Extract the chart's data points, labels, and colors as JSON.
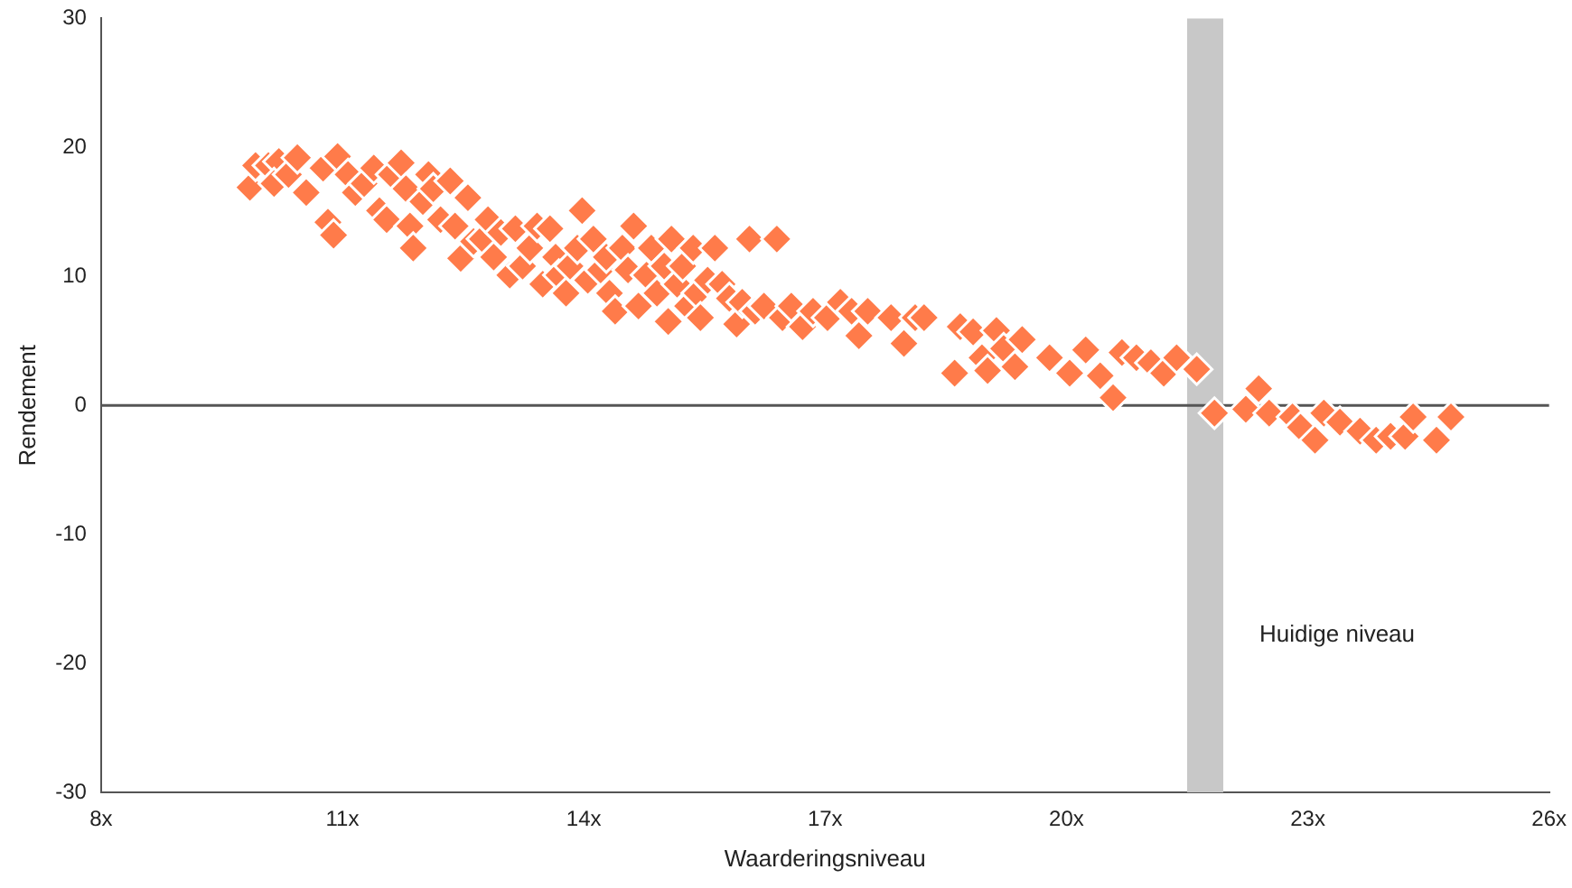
{
  "chart_data": {
    "type": "scatter",
    "xlabel": "Waarderingsniveau",
    "ylabel": "Rendement",
    "xlim": [
      8,
      26
    ],
    "ylim": [
      -30,
      30
    ],
    "xticks": [
      {
        "value": 8,
        "label": "8x"
      },
      {
        "value": 11,
        "label": "11x"
      },
      {
        "value": 14,
        "label": "14x"
      },
      {
        "value": 17,
        "label": "17x"
      },
      {
        "value": 20,
        "label": "20x"
      },
      {
        "value": 23,
        "label": "23x"
      },
      {
        "value": 26,
        "label": "26x"
      }
    ],
    "yticks": [
      -30,
      -20,
      -10,
      0,
      10,
      20,
      30
    ],
    "grid": false,
    "legend": false,
    "marker": "diamond",
    "ref_lines": [
      {
        "axis": "y",
        "value": 0,
        "color": "#555555"
      }
    ],
    "bands": [
      {
        "axis": "x",
        "from": 21.5,
        "to": 21.95,
        "label": "Huidige niveau",
        "color": "#c8c8c8"
      }
    ],
    "series": [
      {
        "color": "#ff7b4a",
        "x": [
          9.85,
          9.92,
          10.08,
          10.21,
          10.15,
          10.33,
          10.44,
          10.55,
          10.76,
          10.82,
          10.89,
          10.94,
          11.07,
          11.16,
          11.27,
          11.39,
          11.46,
          11.55,
          11.61,
          11.73,
          11.79,
          11.84,
          11.88,
          12.0,
          12.07,
          12.13,
          12.22,
          12.34,
          12.4,
          12.47,
          12.56,
          12.63,
          12.74,
          12.81,
          12.88,
          12.97,
          13.08,
          13.15,
          13.24,
          13.33,
          13.42,
          13.49,
          13.58,
          13.65,
          13.69,
          13.78,
          13.83,
          13.92,
          13.98,
          14.05,
          14.12,
          14.21,
          14.28,
          14.32,
          14.39,
          14.48,
          14.55,
          14.62,
          14.68,
          14.78,
          14.84,
          14.91,
          15.0,
          15.05,
          15.09,
          15.16,
          15.23,
          15.29,
          15.36,
          15.41,
          15.45,
          15.54,
          15.63,
          15.72,
          15.81,
          15.9,
          15.97,
          16.06,
          16.13,
          16.24,
          16.4,
          16.47,
          16.58,
          16.72,
          16.85,
          17.03,
          17.19,
          17.33,
          17.42,
          17.53,
          17.82,
          17.98,
          18.12,
          18.23,
          18.61,
          18.68,
          18.84,
          18.95,
          19.02,
          19.13,
          19.22,
          19.36,
          19.45,
          19.79,
          20.04,
          20.24,
          20.42,
          20.58,
          20.69,
          20.87,
          21.05,
          21.21,
          21.37,
          21.62,
          21.84,
          22.23,
          22.39,
          22.52,
          22.81,
          22.91,
          23.09,
          23.2,
          23.4,
          23.65,
          23.85,
          24.03,
          24.21,
          24.31,
          24.6,
          24.78
        ],
        "values": [
          16.9,
          18.6,
          18.6,
          18.9,
          17.2,
          17.9,
          19.2,
          16.5,
          18.4,
          14.2,
          13.2,
          19.3,
          17.9,
          16.5,
          17.2,
          18.4,
          15.1,
          14.4,
          17.9,
          18.8,
          16.8,
          13.9,
          12.2,
          15.8,
          17.9,
          16.8,
          14.4,
          17.4,
          13.9,
          11.4,
          16.1,
          12.7,
          12.9,
          14.4,
          11.5,
          13.4,
          10.1,
          13.7,
          10.8,
          12.2,
          13.9,
          9.4,
          13.7,
          11.5,
          10.1,
          8.7,
          10.8,
          12.2,
          15.1,
          9.7,
          12.9,
          10.5,
          11.5,
          8.7,
          7.3,
          12.2,
          10.5,
          13.9,
          7.7,
          10.1,
          12.2,
          8.7,
          10.8,
          6.5,
          12.9,
          9.4,
          10.8,
          7.7,
          12.2,
          8.7,
          6.8,
          9.7,
          12.2,
          9.4,
          8.3,
          6.3,
          8.0,
          12.9,
          7.3,
          7.7,
          12.9,
          6.8,
          7.7,
          6.1,
          7.3,
          6.8,
          8.0,
          7.3,
          5.4,
          7.3,
          6.8,
          4.8,
          6.8,
          6.8,
          2.5,
          6.1,
          5.7,
          3.7,
          2.7,
          5.8,
          4.4,
          3.0,
          5.1,
          3.7,
          2.5,
          4.3,
          2.3,
          0.6,
          4.1,
          3.7,
          3.3,
          2.5,
          3.7,
          2.8,
          -0.6,
          -0.3,
          1.3,
          -0.6,
          -0.9,
          -1.7,
          -2.7,
          -0.6,
          -1.3,
          -2.0,
          -2.7,
          -2.4,
          -2.4,
          -0.9,
          -2.7,
          -0.9
        ]
      }
    ]
  }
}
